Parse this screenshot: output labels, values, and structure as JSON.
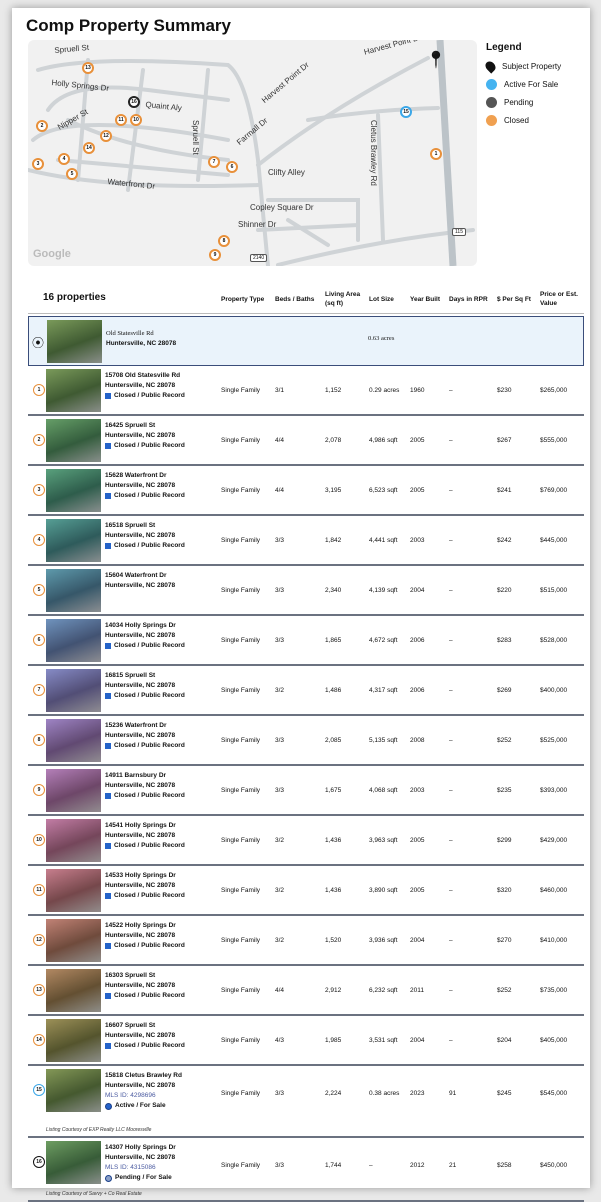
{
  "title": "Comp Property Summary",
  "map": {
    "streets": [
      "Spruell St",
      "Holly Springs Dr",
      "Quaint Aly",
      "Nipper St",
      "Waterfront Dr",
      "Spruell St",
      "Farmall Dr",
      "Harvest Point Dr",
      "Harvest Point Dr",
      "Cletus Brawley Rd",
      "Clifty Alley",
      "Copley Square Dr",
      "Shinner Dr"
    ],
    "route_badges": [
      "115",
      "2140"
    ],
    "attribution": "Google",
    "colors": {
      "closed": "#e8903a",
      "active": "#3ba7e8",
      "pending": "#222222",
      "subject": "#111111",
      "road": "#cfd3d6",
      "background": "#f1f1f1"
    }
  },
  "legend": {
    "title": "Legend",
    "items": [
      {
        "label": "Subject Property",
        "color": "#111111"
      },
      {
        "label": "Active For Sale",
        "color": "#45b3f0"
      },
      {
        "label": "Pending",
        "color": "#555555"
      },
      {
        "label": "Closed",
        "color": "#f0a050"
      }
    ]
  },
  "table": {
    "count_label": "16 properties",
    "headers": [
      "Property Type",
      "Beds / Baths",
      "Living Area (sq ft)",
      "Lot Size",
      "Year Built",
      "Days in RPR",
      "$ Per Sq Ft",
      "Price or Est. Value"
    ],
    "subject": {
      "line1": "Old Statesville Rd",
      "line2": "Huntersville, NC 28078",
      "lot": "0.63 acres"
    },
    "rows": [
      {
        "n": "1",
        "a1": "15708 Old Statesville Rd",
        "a2": "Huntersville, NC 28078",
        "status": "Closed / Public Record",
        "type": "Single Family",
        "bb": "3/1",
        "area": "1,152",
        "lot": "0.29 acres",
        "year": "1960",
        "days": "–",
        "ppsf": "$230",
        "price": "$265,000"
      },
      {
        "n": "2",
        "a1": "16425 Spruell St",
        "a2": "Huntersville, NC 28078",
        "status": "Closed / Public Record",
        "type": "Single Family",
        "bb": "4/4",
        "area": "2,078",
        "lot": "4,986 sqft",
        "year": "2005",
        "days": "–",
        "ppsf": "$267",
        "price": "$555,000"
      },
      {
        "n": "3",
        "a1": "15628 Waterfront Dr",
        "a2": "Huntersville, NC 28078",
        "status": "Closed / Public Record",
        "type": "Single Family",
        "bb": "4/4",
        "area": "3,195",
        "lot": "6,523 sqft",
        "year": "2005",
        "days": "–",
        "ppsf": "$241",
        "price": "$769,000"
      },
      {
        "n": "4",
        "a1": "16518 Spruell St",
        "a2": "Huntersville, NC 28078",
        "status": "Closed / Public Record",
        "type": "Single Family",
        "bb": "3/3",
        "area": "1,842",
        "lot": "4,441 sqft",
        "year": "2003",
        "days": "–",
        "ppsf": "$242",
        "price": "$445,000"
      },
      {
        "n": "5",
        "a1": "15604 Waterfront Dr",
        "a2": "Huntersville, NC 28078",
        "status": "",
        "type": "Single Family",
        "bb": "3/3",
        "area": "2,340",
        "lot": "4,139 sqft",
        "year": "2004",
        "days": "–",
        "ppsf": "$220",
        "price": "$515,000"
      },
      {
        "n": "6",
        "a1": "14034 Holly Springs Dr",
        "a2": "Huntersville, NC 28078",
        "status": "Closed / Public Record",
        "type": "Single Family",
        "bb": "3/3",
        "area": "1,865",
        "lot": "4,672 sqft",
        "year": "2006",
        "days": "–",
        "ppsf": "$283",
        "price": "$528,000"
      },
      {
        "n": "7",
        "a1": "16815 Spruell St",
        "a2": "Huntersville, NC 28078",
        "status": "Closed / Public Record",
        "type": "Single Family",
        "bb": "3/2",
        "area": "1,486",
        "lot": "4,317 sqft",
        "year": "2006",
        "days": "–",
        "ppsf": "$269",
        "price": "$400,000"
      },
      {
        "n": "8",
        "a1": "15236 Waterfront Dr",
        "a2": "Huntersville, NC 28078",
        "status": "Closed / Public Record",
        "type": "Single Family",
        "bb": "3/3",
        "area": "2,085",
        "lot": "5,135 sqft",
        "year": "2008",
        "days": "–",
        "ppsf": "$252",
        "price": "$525,000"
      },
      {
        "n": "9",
        "a1": "14911 Barnsbury Dr",
        "a2": "Huntersville, NC 28078",
        "status": "Closed / Public Record",
        "type": "Single Family",
        "bb": "3/3",
        "area": "1,675",
        "lot": "4,068 sqft",
        "year": "2003",
        "days": "–",
        "ppsf": "$235",
        "price": "$393,000"
      },
      {
        "n": "10",
        "a1": "14541 Holly Springs Dr",
        "a2": "Huntersville, NC 28078",
        "status": "Closed / Public Record",
        "type": "Single Family",
        "bb": "3/2",
        "area": "1,436",
        "lot": "3,963 sqft",
        "year": "2005",
        "days": "–",
        "ppsf": "$299",
        "price": "$429,000"
      },
      {
        "n": "11",
        "a1": "14533 Holly Springs Dr",
        "a2": "Huntersville, NC 28078",
        "status": "Closed / Public Record",
        "type": "Single Family",
        "bb": "3/2",
        "area": "1,436",
        "lot": "3,890 sqft",
        "year": "2005",
        "days": "–",
        "ppsf": "$320",
        "price": "$460,000"
      },
      {
        "n": "12",
        "a1": "14522 Holly Springs Dr",
        "a2": "Huntersville, NC 28078",
        "status": "Closed / Public Record",
        "type": "Single Family",
        "bb": "3/2",
        "area": "1,520",
        "lot": "3,936 sqft",
        "year": "2004",
        "days": "–",
        "ppsf": "$270",
        "price": "$410,000"
      },
      {
        "n": "13",
        "a1": "16303 Spruell St",
        "a2": "Huntersville, NC 28078",
        "status": "Closed / Public Record",
        "type": "Single Family",
        "bb": "4/4",
        "area": "2,912",
        "lot": "6,232 sqft",
        "year": "2011",
        "days": "–",
        "ppsf": "$252",
        "price": "$735,000"
      },
      {
        "n": "14",
        "a1": "16607 Spruell St",
        "a2": "Huntersville, NC 28078",
        "status": "Closed / Public Record",
        "type": "Single Family",
        "bb": "4/3",
        "area": "1,985",
        "lot": "3,531 sqft",
        "year": "2004",
        "days": "–",
        "ppsf": "$204",
        "price": "$405,000"
      },
      {
        "n": "15",
        "a1": "15818 Cletus Brawley Rd",
        "a2": "Huntersville, NC 28078",
        "mls": "MLS ID: 4298696",
        "status": "Active / For Sale",
        "courtesy": "Listing Courtesy of EXP Realty LLC Mooresville",
        "type": "Single Family",
        "bb": "3/3",
        "area": "2,224",
        "lot": "0.38 acres",
        "year": "2023",
        "days": "91",
        "ppsf": "$245",
        "price": "$545,000"
      },
      {
        "n": "16",
        "a1": "14307 Holly Springs Dr",
        "a2": "Huntersville, NC 28078",
        "mls": "MLS ID: 4315086",
        "status": "Pending / For Sale",
        "courtesy": "Listing Courtesy of Savvy + Co Real Estate",
        "type": "Single Family",
        "bb": "3/3",
        "area": "1,744",
        "lot": "–",
        "year": "2012",
        "days": "21",
        "ppsf": "$258",
        "price": "$450,000"
      }
    ]
  }
}
